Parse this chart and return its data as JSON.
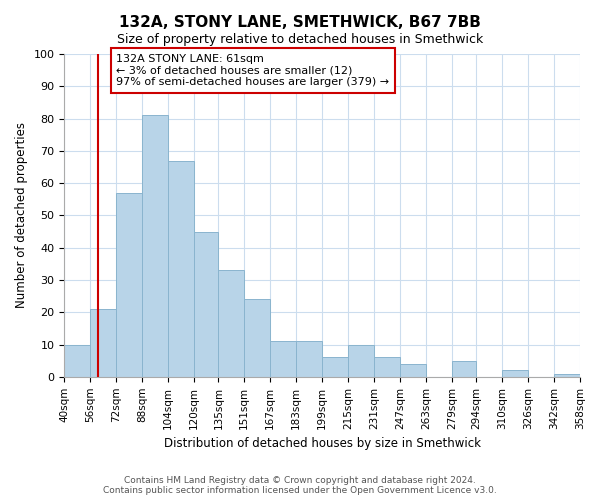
{
  "title": "132A, STONY LANE, SMETHWICK, B67 7BB",
  "subtitle": "Size of property relative to detached houses in Smethwick",
  "xlabel": "Distribution of detached houses by size in Smethwick",
  "ylabel": "Number of detached properties",
  "bin_edges": [
    40,
    56,
    72,
    88,
    104,
    120,
    135,
    151,
    167,
    183,
    199,
    215,
    231,
    247,
    263,
    279,
    294,
    310,
    326,
    342,
    358
  ],
  "bin_labels": [
    "40sqm",
    "56sqm",
    "72sqm",
    "88sqm",
    "104sqm",
    "120sqm",
    "135sqm",
    "151sqm",
    "167sqm",
    "183sqm",
    "199sqm",
    "215sqm",
    "231sqm",
    "247sqm",
    "263sqm",
    "279sqm",
    "294sqm",
    "310sqm",
    "326sqm",
    "342sqm",
    "358sqm"
  ],
  "bar_heights": [
    10,
    21,
    57,
    81,
    67,
    45,
    33,
    24,
    11,
    11,
    6,
    10,
    6,
    4,
    0,
    5,
    0,
    2,
    0,
    1
  ],
  "bar_color": "#b8d4e8",
  "bar_edge_color": "#8ab4ce",
  "red_line_x": 61,
  "red_line_color": "#cc0000",
  "ylim": [
    0,
    100
  ],
  "annotation_title": "132A STONY LANE: 61sqm",
  "annotation_line1": "← 3% of detached houses are smaller (12)",
  "annotation_line2": "97% of semi-detached houses are larger (379) →",
  "annotation_box_color": "#ffffff",
  "annotation_box_edge": "#cc0000",
  "footer_line1": "Contains HM Land Registry data © Crown copyright and database right 2024.",
  "footer_line2": "Contains public sector information licensed under the Open Government Licence v3.0.",
  "background_color": "#ffffff",
  "grid_color": "#ccddee"
}
